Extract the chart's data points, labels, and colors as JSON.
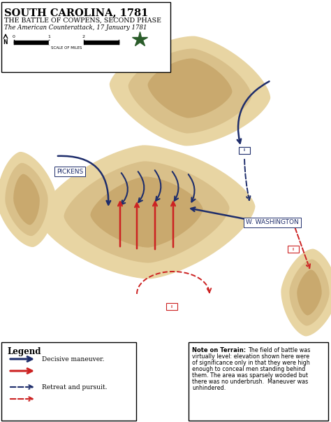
{
  "title1": "SOUTH CAROLINA, 1781",
  "title2": "THE BATTLE OF COWPENS, SECOND PHASE",
  "title3": "The American Counterattack, 17 January 1781",
  "map_bg": "#ffffff",
  "terrain_outer": "#e8d5a3",
  "terrain_mid": "#d9c08a",
  "terrain_inner": "#c9a96e",
  "dark_navy": "#1e2d6b",
  "red_color": "#cc2222",
  "note_text": "Note on Terrain:  The field of battle was\nvirtually level: elevation shown here were\nof significance only in that they were high\nenough to conceal men standing behind\nthem. The area was sparsely wooded but\nthere was no underbrush.  Maneuver was\nunhindered."
}
